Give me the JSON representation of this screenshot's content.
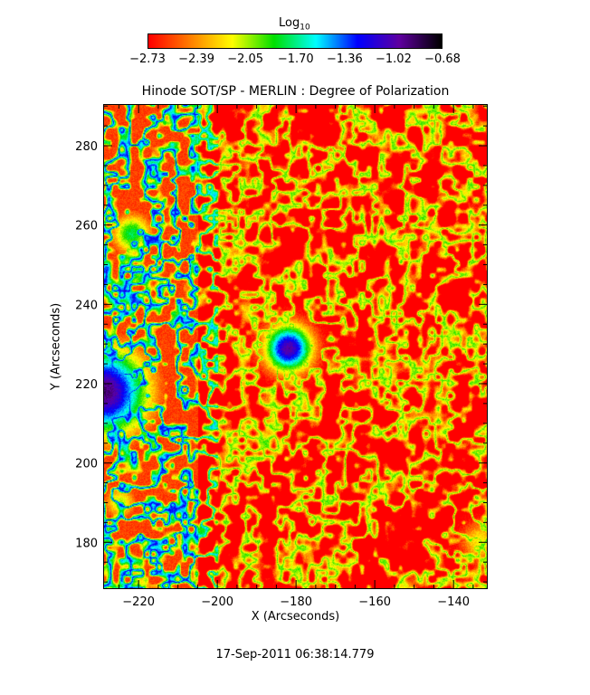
{
  "chart_data": {
    "type": "heatmap",
    "title": "Hinode SOT/SP - MERLIN : Degree of Polarization",
    "xlabel": "X (Arcseconds)",
    "ylabel": "Y (Arcseconds)",
    "xlim": [
      -229,
      -131.3
    ],
    "ylim": [
      168.2,
      290.5
    ],
    "xticks": [
      -220,
      -200,
      -180,
      -160,
      -140
    ],
    "yticks": [
      180,
      200,
      220,
      240,
      260,
      280
    ],
    "xtick_labels": [
      "−220",
      "−200",
      "−180",
      "−160",
      "−140"
    ],
    "ytick_labels": [
      "180",
      "200",
      "220",
      "240",
      "260",
      "280"
    ],
    "colorbar": {
      "label_base": "Log",
      "label_sub": "10",
      "range": [
        -2.73,
        -0.68
      ],
      "tick_values": [
        -2.73,
        -2.39,
        -2.05,
        -1.7,
        -1.36,
        -1.02,
        -0.68
      ],
      "tick_labels": [
        "−2.73",
        "−2.39",
        "−2.05",
        "−1.70",
        "−1.36",
        "−1.02",
        "−0.68"
      ],
      "colormap": [
        "#ff0000",
        "#ff8000",
        "#ffff00",
        "#00e000",
        "#00ffff",
        "#0000ff",
        "#6000a0",
        "#000000"
      ],
      "placement": "top"
    },
    "grid": false
  },
  "timestamp": "17-Sep-2011 06:38:14.779"
}
